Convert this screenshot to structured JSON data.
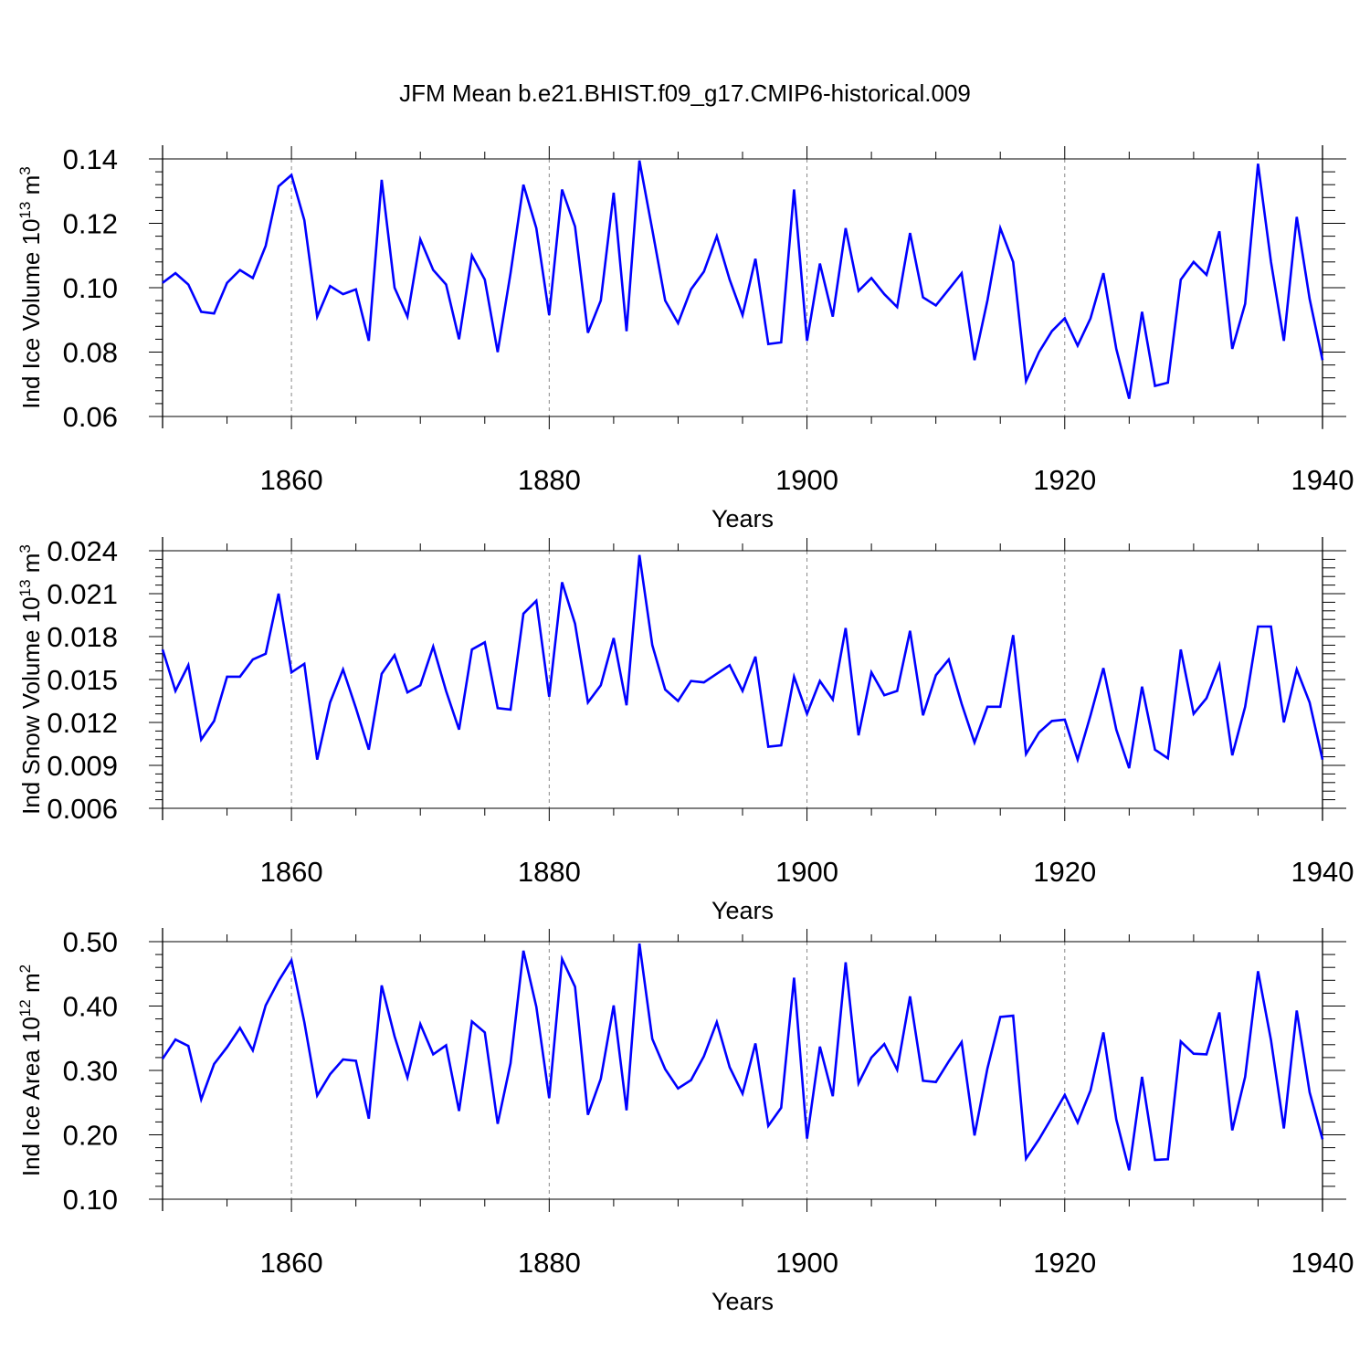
{
  "figure_title": "JFM Mean b.e21.BHIST.f09_g17.CMIP6-historical.009",
  "line_color": "#0000ff",
  "chart_data": [
    {
      "type": "line",
      "title": "JFM Mean b.e21.BHIST.f09_g17.CMIP6-historical.009",
      "xlabel": "Years",
      "ylabel_main": "Ind Ice Volume 10",
      "ylabel_exp": "13",
      "ylabel_unit": " m",
      "ylabel_unit_exp": "3",
      "xlim": [
        1850,
        1940
      ],
      "ylim": [
        0.06,
        0.14
      ],
      "xticks": [
        1860,
        1880,
        1900,
        1920,
        1940
      ],
      "xtick_labels": [
        "1860",
        "1880",
        "1900",
        "1920",
        "1940"
      ],
      "yticks": [
        0.06,
        0.08,
        0.1,
        0.12,
        0.14
      ],
      "ytick_labels": [
        "0.06",
        "0.08",
        "0.10",
        "0.12",
        "0.14"
      ],
      "grid": "dashed vertical lines at major x ticks",
      "x": [
        1850,
        1851,
        1852,
        1853,
        1854,
        1855,
        1856,
        1857,
        1858,
        1859,
        1860,
        1861,
        1862,
        1863,
        1864,
        1865,
        1866,
        1867,
        1868,
        1869,
        1870,
        1871,
        1872,
        1873,
        1874,
        1875,
        1876,
        1877,
        1878,
        1879,
        1880,
        1881,
        1882,
        1883,
        1884,
        1885,
        1886,
        1887,
        1888,
        1889,
        1890,
        1891,
        1892,
        1893,
        1894,
        1895,
        1896,
        1897,
        1898,
        1899,
        1900,
        1901,
        1902,
        1903,
        1904,
        1905,
        1906,
        1907,
        1908,
        1909,
        1910,
        1911,
        1912,
        1913,
        1914,
        1915,
        1916,
        1917,
        1918,
        1919,
        1920,
        1921,
        1922,
        1923,
        1924,
        1925,
        1926,
        1927,
        1928,
        1929,
        1930,
        1931,
        1932,
        1933,
        1934,
        1935,
        1936,
        1937,
        1938,
        1939,
        1940
      ],
      "series": [
        {
          "name": "Ind Ice Volume",
          "values": [
            0.1015,
            0.1045,
            0.101,
            0.0925,
            0.092,
            0.1015,
            0.1055,
            0.103,
            0.113,
            0.1315,
            0.135,
            0.121,
            0.091,
            0.1005,
            0.098,
            0.0995,
            0.0835,
            0.1335,
            0.1,
            0.091,
            0.115,
            0.1055,
            0.101,
            0.084,
            0.11,
            0.1025,
            0.08,
            0.1045,
            0.132,
            0.1185,
            0.0915,
            0.1305,
            0.119,
            0.086,
            0.096,
            0.1295,
            0.0865,
            0.1395,
            0.118,
            0.096,
            0.089,
            0.0995,
            0.105,
            0.116,
            0.1025,
            0.0915,
            0.109,
            0.0825,
            0.083,
            0.1305,
            0.0835,
            0.1075,
            0.091,
            0.1185,
            0.099,
            0.103,
            0.098,
            0.094,
            0.117,
            0.097,
            0.0945,
            0.0995,
            0.1045,
            0.0775,
            0.096,
            0.1185,
            0.108,
            0.071,
            0.08,
            0.0865,
            0.0905,
            0.082,
            0.0905,
            0.1045,
            0.081,
            0.0655,
            0.0925,
            0.0695,
            0.0705,
            0.1025,
            0.108,
            0.104,
            0.1175,
            0.081,
            0.095,
            0.1385,
            0.108,
            0.0835,
            0.122,
            0.0965,
            0.0775
          ]
        }
      ]
    },
    {
      "type": "line",
      "xlabel": "Years",
      "ylabel_main": "Ind Snow Volume 10",
      "ylabel_exp": "13",
      "ylabel_unit": " m",
      "ylabel_unit_exp": "3",
      "xlim": [
        1850,
        1940
      ],
      "ylim": [
        0.006,
        0.024
      ],
      "xticks": [
        1860,
        1880,
        1900,
        1920,
        1940
      ],
      "xtick_labels": [
        "1860",
        "1880",
        "1900",
        "1920",
        "1940"
      ],
      "yticks": [
        0.006,
        0.009,
        0.012,
        0.015,
        0.018,
        0.021,
        0.024
      ],
      "ytick_labels": [
        "0.006",
        "0.009",
        "0.012",
        "0.015",
        "0.018",
        "0.021",
        "0.024"
      ],
      "grid": "dashed vertical lines at major x ticks",
      "x": [
        1850,
        1851,
        1852,
        1853,
        1854,
        1855,
        1856,
        1857,
        1858,
        1859,
        1860,
        1861,
        1862,
        1863,
        1864,
        1865,
        1866,
        1867,
        1868,
        1869,
        1870,
        1871,
        1872,
        1873,
        1874,
        1875,
        1876,
        1877,
        1878,
        1879,
        1880,
        1881,
        1882,
        1883,
        1884,
        1885,
        1886,
        1887,
        1888,
        1889,
        1890,
        1891,
        1892,
        1893,
        1894,
        1895,
        1896,
        1897,
        1898,
        1899,
        1900,
        1901,
        1902,
        1903,
        1904,
        1905,
        1906,
        1907,
        1908,
        1909,
        1910,
        1911,
        1912,
        1913,
        1914,
        1915,
        1916,
        1917,
        1918,
        1919,
        1920,
        1921,
        1922,
        1923,
        1924,
        1925,
        1926,
        1927,
        1928,
        1929,
        1930,
        1931,
        1932,
        1933,
        1934,
        1935,
        1936,
        1937,
        1938,
        1939,
        1940
      ],
      "series": [
        {
          "name": "Ind Snow Volume",
          "values": [
            0.0171,
            0.0142,
            0.016,
            0.0108,
            0.0121,
            0.0152,
            0.0152,
            0.0164,
            0.0168,
            0.021,
            0.0155,
            0.0161,
            0.0094,
            0.0134,
            0.0157,
            0.013,
            0.0101,
            0.0154,
            0.0167,
            0.0141,
            0.0146,
            0.0173,
            0.0142,
            0.0115,
            0.0171,
            0.0176,
            0.013,
            0.0129,
            0.0196,
            0.0205,
            0.0138,
            0.0218,
            0.0189,
            0.0134,
            0.0146,
            0.0179,
            0.0132,
            0.0237,
            0.0174,
            0.0143,
            0.0135,
            0.0149,
            0.0148,
            0.0154,
            0.016,
            0.0142,
            0.0166,
            0.0103,
            0.0104,
            0.0152,
            0.0126,
            0.0149,
            0.0136,
            0.0186,
            0.0111,
            0.0155,
            0.0139,
            0.0142,
            0.0184,
            0.0125,
            0.0153,
            0.0164,
            0.0133,
            0.0106,
            0.0131,
            0.0131,
            0.0181,
            0.0098,
            0.0113,
            0.0121,
            0.0122,
            0.0094,
            0.0125,
            0.0158,
            0.0115,
            0.0088,
            0.0145,
            0.0101,
            0.0095,
            0.0171,
            0.0126,
            0.0137,
            0.016,
            0.0097,
            0.0131,
            0.0187,
            0.0187,
            0.012,
            0.0157,
            0.0134,
            0.0094
          ]
        }
      ]
    },
    {
      "type": "line",
      "xlabel": "Years",
      "ylabel_main": "Ind Ice Area 10",
      "ylabel_exp": "12",
      "ylabel_unit": " m",
      "ylabel_unit_exp": "2",
      "xlim": [
        1850,
        1940
      ],
      "ylim": [
        0.1,
        0.5
      ],
      "xticks": [
        1860,
        1880,
        1900,
        1920,
        1940
      ],
      "xtick_labels": [
        "1860",
        "1880",
        "1900",
        "1920",
        "1940"
      ],
      "yticks": [
        0.1,
        0.2,
        0.3,
        0.4,
        0.5
      ],
      "ytick_labels": [
        "0.10",
        "0.20",
        "0.30",
        "0.40",
        "0.50"
      ],
      "grid": "dashed vertical lines at major x ticks",
      "x": [
        1850,
        1851,
        1852,
        1853,
        1854,
        1855,
        1856,
        1857,
        1858,
        1859,
        1860,
        1861,
        1862,
        1863,
        1864,
        1865,
        1866,
        1867,
        1868,
        1869,
        1870,
        1871,
        1872,
        1873,
        1874,
        1875,
        1876,
        1877,
        1878,
        1879,
        1880,
        1881,
        1882,
        1883,
        1884,
        1885,
        1886,
        1887,
        1888,
        1889,
        1890,
        1891,
        1892,
        1893,
        1894,
        1895,
        1896,
        1897,
        1898,
        1899,
        1900,
        1901,
        1902,
        1903,
        1904,
        1905,
        1906,
        1907,
        1908,
        1909,
        1910,
        1911,
        1912,
        1913,
        1914,
        1915,
        1916,
        1917,
        1918,
        1919,
        1920,
        1921,
        1922,
        1923,
        1924,
        1925,
        1926,
        1927,
        1928,
        1929,
        1930,
        1931,
        1932,
        1933,
        1934,
        1935,
        1936,
        1937,
        1938,
        1939,
        1940
      ],
      "series": [
        {
          "name": "Ind Ice Area",
          "values": [
            0.318,
            0.348,
            0.338,
            0.255,
            0.31,
            0.336,
            0.366,
            0.331,
            0.401,
            0.439,
            0.471,
            0.375,
            0.261,
            0.294,
            0.317,
            0.315,
            0.225,
            0.432,
            0.353,
            0.289,
            0.372,
            0.325,
            0.339,
            0.237,
            0.376,
            0.359,
            0.217,
            0.311,
            0.486,
            0.399,
            0.257,
            0.473,
            0.43,
            0.231,
            0.287,
            0.401,
            0.238,
            0.497,
            0.349,
            0.302,
            0.272,
            0.285,
            0.322,
            0.375,
            0.305,
            0.264,
            0.342,
            0.214,
            0.242,
            0.444,
            0.194,
            0.337,
            0.26,
            0.468,
            0.28,
            0.32,
            0.341,
            0.301,
            0.415,
            0.284,
            0.282,
            0.314,
            0.344,
            0.199,
            0.303,
            0.383,
            0.385,
            0.163,
            0.193,
            0.227,
            0.262,
            0.219,
            0.269,
            0.359,
            0.224,
            0.145,
            0.29,
            0.161,
            0.162,
            0.345,
            0.326,
            0.325,
            0.39,
            0.207,
            0.29,
            0.454,
            0.347,
            0.21,
            0.393,
            0.266,
            0.193
          ]
        }
      ]
    }
  ]
}
